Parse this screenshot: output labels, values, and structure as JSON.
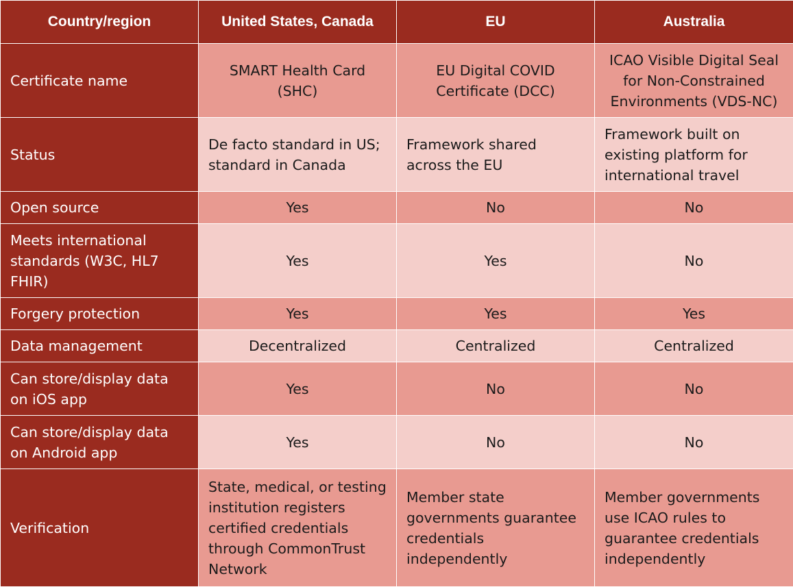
{
  "header": {
    "col0": "Country/region",
    "col1": "United States, Canada",
    "col2": "EU",
    "col3": "Australia"
  },
  "rows": [
    {
      "label": "Certificate name",
      "us": "SMART Health Card (SHC)",
      "eu": "EU Digital COVID Certificate (DCC)",
      "au": "ICAO Visible Digital Seal for Non-Constrained Environments (VDS-NC)"
    },
    {
      "label": "Status",
      "us": "De facto standard in US; standard in Canada",
      "eu": "Framework shared across the EU",
      "au": "Framework built on existing platform for international travel"
    },
    {
      "label": "Open source",
      "us": "Yes",
      "eu": "No",
      "au": "No"
    },
    {
      "label": "Meets international standards (W3C, HL7 FHIR)",
      "us": "Yes",
      "eu": "Yes",
      "au": "No"
    },
    {
      "label": "Forgery protection",
      "us": "Yes",
      "eu": "Yes",
      "au": "Yes"
    },
    {
      "label": "Data management",
      "us": "Decentralized",
      "eu": "Centralized",
      "au": "Centralized"
    },
    {
      "label": "Can store/display data on iOS app",
      "us": "Yes",
      "eu": "No",
      "au": "No"
    },
    {
      "label": "Can store/display data on Android app",
      "us": "Yes",
      "eu": "No",
      "au": "No"
    },
    {
      "label": "Verification",
      "us": "State, medical, or testing institution registers certified credentials through CommonTrust Network",
      "eu": "Member state governments guarantee credentials independently",
      "au": "Member governments use ICAO rules to guarantee credentials independently"
    }
  ]
}
